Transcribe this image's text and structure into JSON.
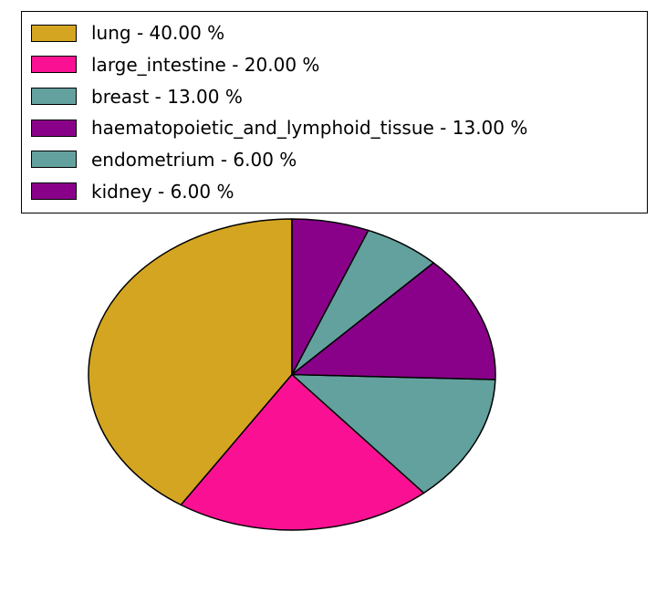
{
  "figure": {
    "background_color": "#ffffff"
  },
  "chart_data": {
    "type": "pie",
    "title": "",
    "xlabel": "",
    "ylabel": "",
    "unit": "%",
    "legend_position": "upper left",
    "legend_border_color": "#000000",
    "edge_color": "#000000",
    "start_angle_deg": 90,
    "direction": "counterclockwise",
    "categories": [
      "lung",
      "large_intestine",
      "breast",
      "haematopoietic_and_lymphoid_tissue",
      "endometrium",
      "kidney"
    ],
    "values": [
      40.0,
      20.0,
      13.0,
      13.0,
      6.0,
      6.0
    ],
    "slices": [
      {
        "name": "lung",
        "value": 40.0,
        "color": "#D4A520",
        "legend_label": "lung - 40.00 %"
      },
      {
        "name": "large_intestine",
        "value": 20.0,
        "color": "#FA1193",
        "legend_label": "large_intestine - 20.00 %"
      },
      {
        "name": "breast",
        "value": 13.0,
        "color": "#63A19E",
        "legend_label": "breast - 13.00 %"
      },
      {
        "name": "haematopoietic_and_lymphoid_tissue",
        "value": 13.0,
        "color": "#8A0189",
        "legend_label": "haematopoietic_and_lymphoid_tissue - 13.00 %"
      },
      {
        "name": "endometrium",
        "value": 6.0,
        "color": "#63A19E",
        "legend_label": "endometrium - 6.00 %"
      },
      {
        "name": "kidney",
        "value": 6.0,
        "color": "#8A0189",
        "legend_label": "kidney - 6.00 %"
      }
    ]
  }
}
